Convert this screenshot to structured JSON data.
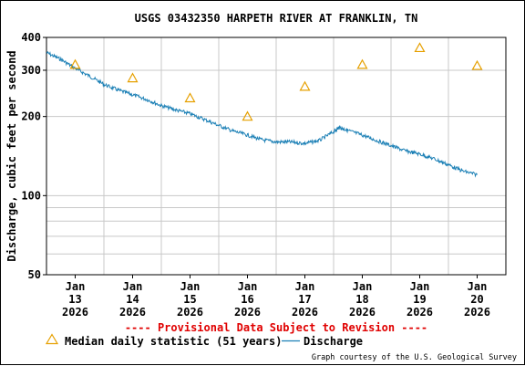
{
  "chart_data": {
    "type": "line",
    "title": "USGS 03432350 HARPETH RIVER AT FRANKLIN, TN",
    "ylabel": "Discharge, cubic feet per second",
    "xlabel": "",
    "yscale": "log",
    "ylim": [
      50,
      400
    ],
    "y_ticks": [
      50,
      100,
      200,
      300,
      400
    ],
    "y_tick_labels": [
      "50",
      "100",
      "200",
      "300",
      "400"
    ],
    "x_range_days": [
      12.5,
      20.5
    ],
    "x_ticks": [
      {
        "day": 13,
        "label": [
          "Jan",
          "13",
          "2026"
        ]
      },
      {
        "day": 14,
        "label": [
          "Jan",
          "14",
          "2026"
        ]
      },
      {
        "day": 15,
        "label": [
          "Jan",
          "15",
          "2026"
        ]
      },
      {
        "day": 16,
        "label": [
          "Jan",
          "16",
          "2026"
        ]
      },
      {
        "day": 17,
        "label": [
          "Jan",
          "17",
          "2026"
        ]
      },
      {
        "day": 18,
        "label": [
          "Jan",
          "18",
          "2026"
        ]
      },
      {
        "day": 19,
        "label": [
          "Jan",
          "19",
          "2026"
        ]
      },
      {
        "day": 20,
        "label": [
          "Jan",
          "20",
          "2026"
        ]
      }
    ],
    "grid": true,
    "series": [
      {
        "name": "Discharge",
        "color": "#1a7fb5",
        "x": [
          12.5,
          12.75,
          13.0,
          13.25,
          13.5,
          13.75,
          14.0,
          14.25,
          14.5,
          14.75,
          15.0,
          15.25,
          15.5,
          15.75,
          16.0,
          16.25,
          16.5,
          16.75,
          17.0,
          17.25,
          17.5,
          17.6,
          17.75,
          18.0,
          18.25,
          18.5,
          18.75,
          19.0,
          19.25,
          19.5,
          19.75,
          20.0
        ],
        "y": [
          350,
          330,
          305,
          285,
          265,
          252,
          242,
          232,
          220,
          212,
          205,
          195,
          185,
          176,
          170,
          163,
          160,
          160,
          158,
          162,
          175,
          182,
          177,
          170,
          162,
          155,
          148,
          144,
          138,
          131,
          124,
          120
        ]
      },
      {
        "name": "Median daily statistic (51 years)",
        "color": "#e6a000",
        "marker": "triangle",
        "x": [
          13,
          14,
          15,
          16,
          17,
          18,
          19,
          20
        ],
        "y": [
          315,
          280,
          235,
          200,
          260,
          315,
          365,
          312
        ]
      }
    ]
  },
  "notice": "---- Provisional Data Subject to Revision ----",
  "legend": {
    "median_label": "Median daily statistic (51 years)",
    "discharge_label": "Discharge"
  },
  "credit": "Graph courtesy of the U.S. Geological Survey"
}
